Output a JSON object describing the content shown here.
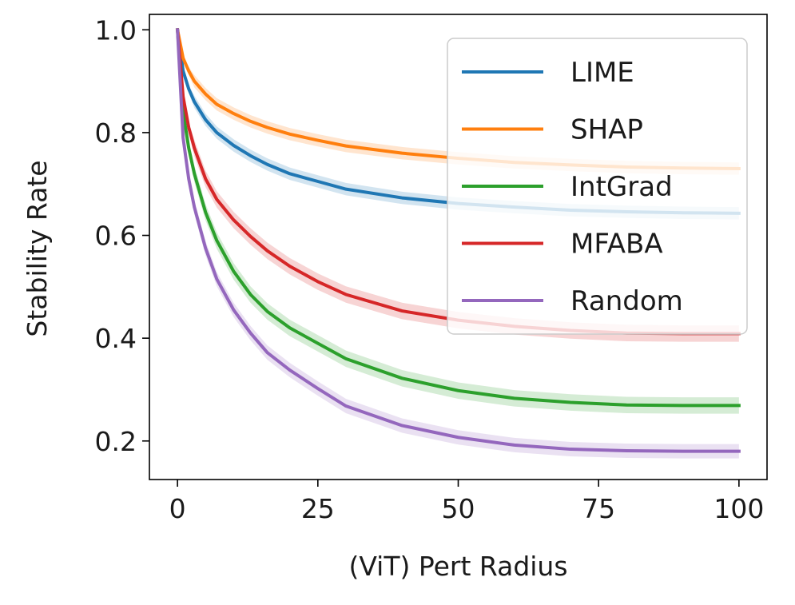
{
  "chart_data": {
    "type": "line",
    "xlabel": "(ViT) Pert Radius",
    "ylabel": "Stability Rate",
    "xlim": [
      -5,
      105
    ],
    "ylim": [
      0.125,
      1.03
    ],
    "xticks": [
      0,
      25,
      50,
      75,
      100
    ],
    "yticks": [
      0.2,
      0.4,
      0.6,
      0.8,
      1.0
    ],
    "xtick_labels": [
      "0",
      "25",
      "50",
      "75",
      "100"
    ],
    "ytick_labels": [
      "0.2",
      "0.4",
      "0.6",
      "0.8",
      "1.0"
    ],
    "grid": false,
    "legend": {
      "position": "top-right",
      "entries": [
        "LIME",
        "SHAP",
        "IntGrad",
        "MFABA",
        "Random"
      ]
    },
    "x": [
      0,
      1,
      2,
      3,
      5,
      7,
      10,
      13,
      16,
      20,
      25,
      30,
      40,
      50,
      60,
      70,
      80,
      90,
      100
    ],
    "series": [
      {
        "name": "LIME",
        "color": "#1f77b4",
        "values": [
          1.0,
          0.92,
          0.885,
          0.86,
          0.825,
          0.8,
          0.775,
          0.755,
          0.738,
          0.72,
          0.705,
          0.69,
          0.673,
          0.662,
          0.655,
          0.649,
          0.646,
          0.644,
          0.643
        ],
        "band": 0.012
      },
      {
        "name": "SHAP",
        "color": "#ff7f0e",
        "values": [
          1.0,
          0.945,
          0.92,
          0.9,
          0.875,
          0.855,
          0.837,
          0.822,
          0.81,
          0.797,
          0.785,
          0.774,
          0.76,
          0.75,
          0.742,
          0.737,
          0.733,
          0.731,
          0.73
        ],
        "band": 0.012
      },
      {
        "name": "IntGrad",
        "color": "#2ca02c",
        "values": [
          1.0,
          0.84,
          0.77,
          0.72,
          0.645,
          0.59,
          0.53,
          0.485,
          0.452,
          0.42,
          0.39,
          0.36,
          0.322,
          0.298,
          0.283,
          0.275,
          0.27,
          0.269,
          0.269
        ],
        "band": 0.016
      },
      {
        "name": "MFABA",
        "color": "#d62728",
        "values": [
          1.0,
          0.87,
          0.81,
          0.77,
          0.71,
          0.67,
          0.63,
          0.598,
          0.57,
          0.54,
          0.51,
          0.485,
          0.453,
          0.435,
          0.423,
          0.415,
          0.41,
          0.409,
          0.409
        ],
        "band": 0.016
      },
      {
        "name": "Random",
        "color": "#9467bd",
        "values": [
          1.0,
          0.79,
          0.71,
          0.655,
          0.575,
          0.515,
          0.455,
          0.41,
          0.372,
          0.338,
          0.302,
          0.268,
          0.23,
          0.207,
          0.192,
          0.184,
          0.181,
          0.18,
          0.18
        ],
        "band": 0.014
      }
    ]
  }
}
